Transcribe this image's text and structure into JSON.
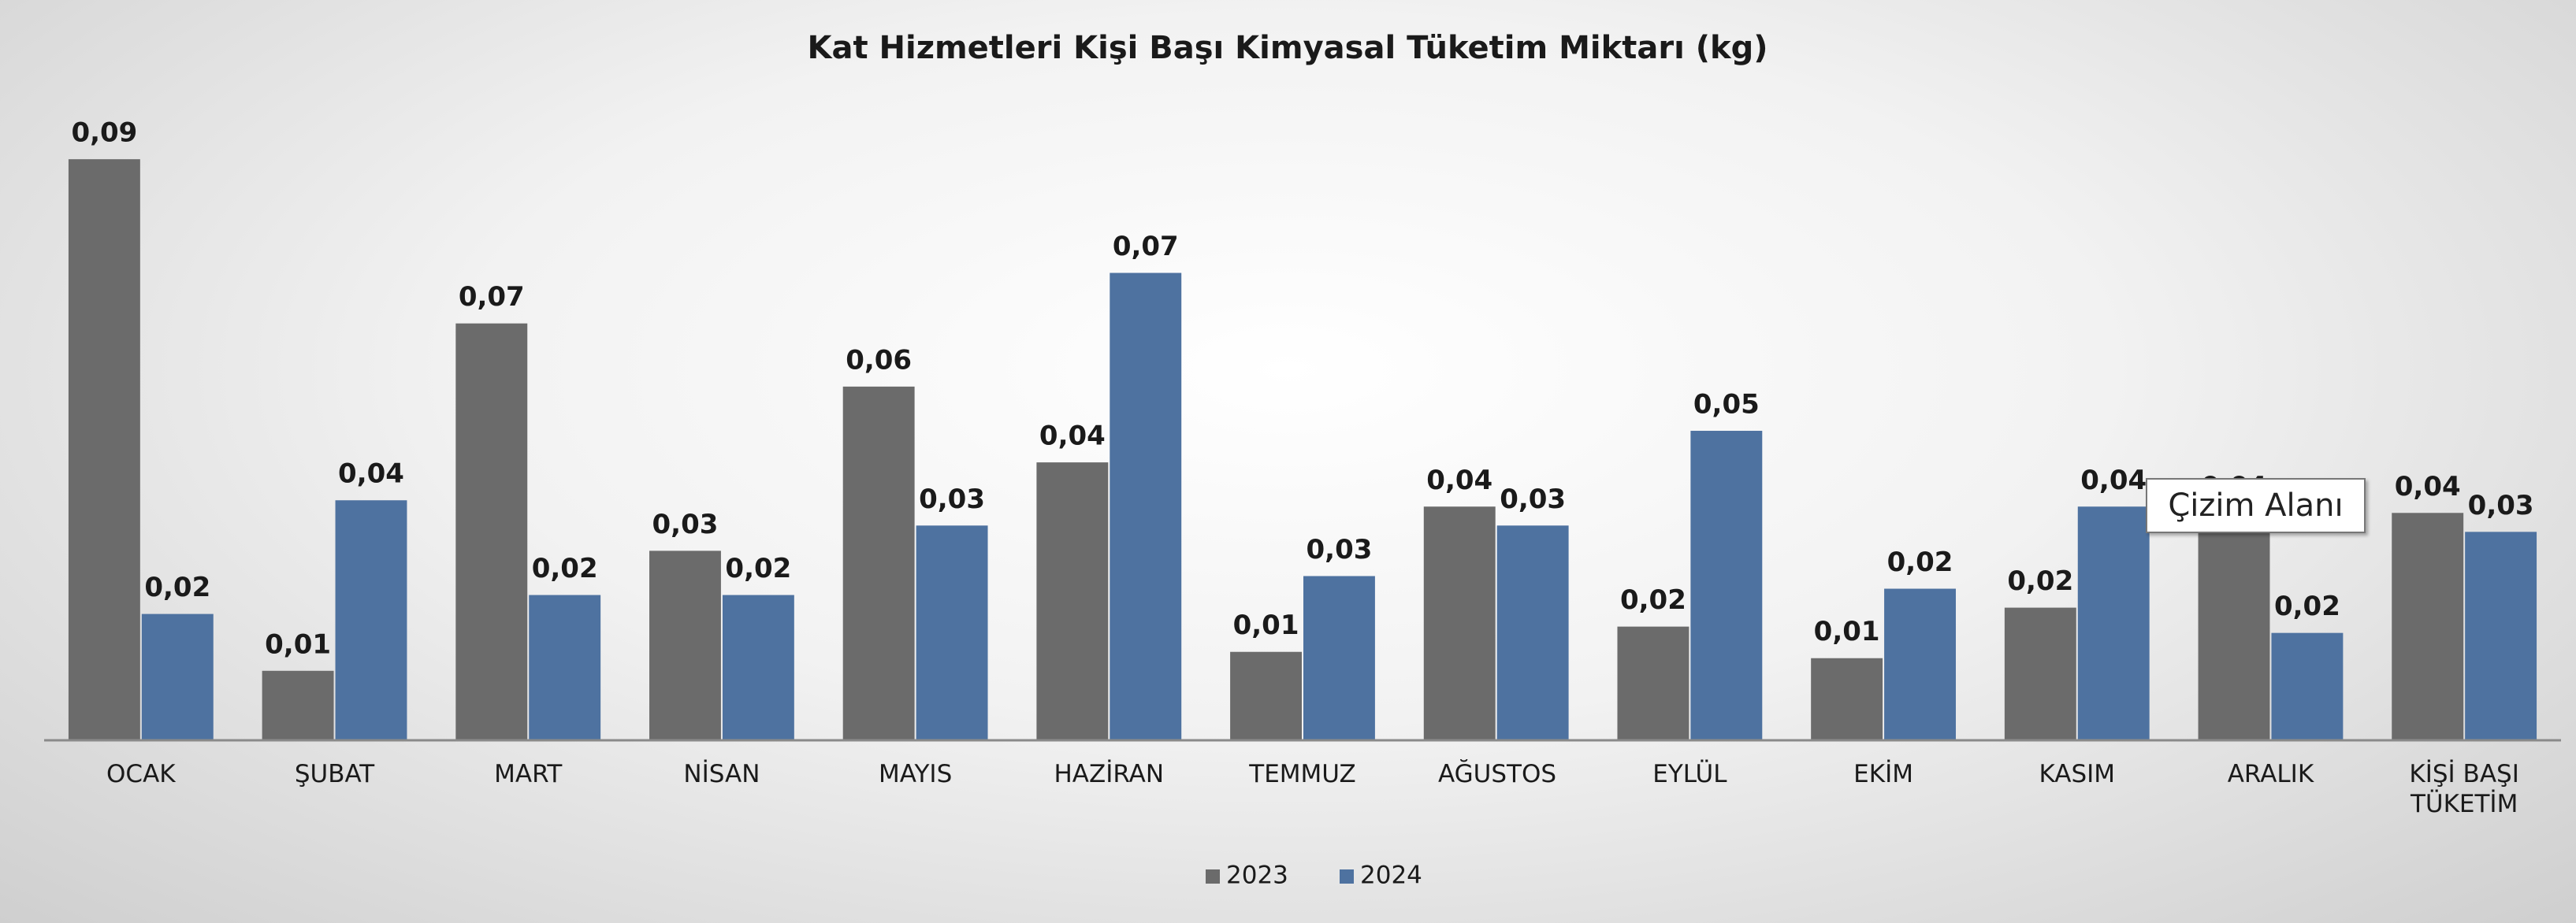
{
  "chart_data": {
    "type": "bar",
    "title": "Kat Hizmetleri Kişi Başı Kimyasal Tüketim Miktarı (kg)",
    "tooltip": "Çizim Alanı",
    "categories": [
      "OCAK",
      "ŞUBAT",
      "MART",
      "NİSAN",
      "MAYIS",
      "HAZİRAN",
      "TEMMUZ",
      "AĞUSTOS",
      "EYLÜL",
      "EKİM",
      "KASIM",
      "ARALIK",
      "KİŞİ BAŞI TÜKETİM"
    ],
    "series": [
      {
        "name": "2023",
        "color": "#6b6b6b",
        "values": [
          0.092,
          0.011,
          0.066,
          0.03,
          0.056,
          0.044,
          0.014,
          0.037,
          0.018,
          0.013,
          0.021,
          0.036,
          0.036
        ],
        "value_labels": [
          "0,09",
          "0,01",
          "0,07",
          "0,03",
          "0,06",
          "0,04",
          "0,01",
          "0,04",
          "0,02",
          "0,01",
          "0,02",
          "0,04",
          "0,04"
        ]
      },
      {
        "name": "2024",
        "color": "#4e72a0",
        "values": [
          0.02,
          0.038,
          0.023,
          0.023,
          0.034,
          0.074,
          0.026,
          0.034,
          0.049,
          0.024,
          0.037,
          0.017,
          0.033
        ],
        "value_labels": [
          "0,02",
          "0,04",
          "0,02",
          "0,02",
          "0,03",
          "0,07",
          "0,03",
          "0,03",
          "0,05",
          "0,02",
          "0,04",
          "0,02",
          "0,03"
        ]
      }
    ],
    "ylim": [
      0,
      0.1
    ],
    "legend": "bottom"
  }
}
